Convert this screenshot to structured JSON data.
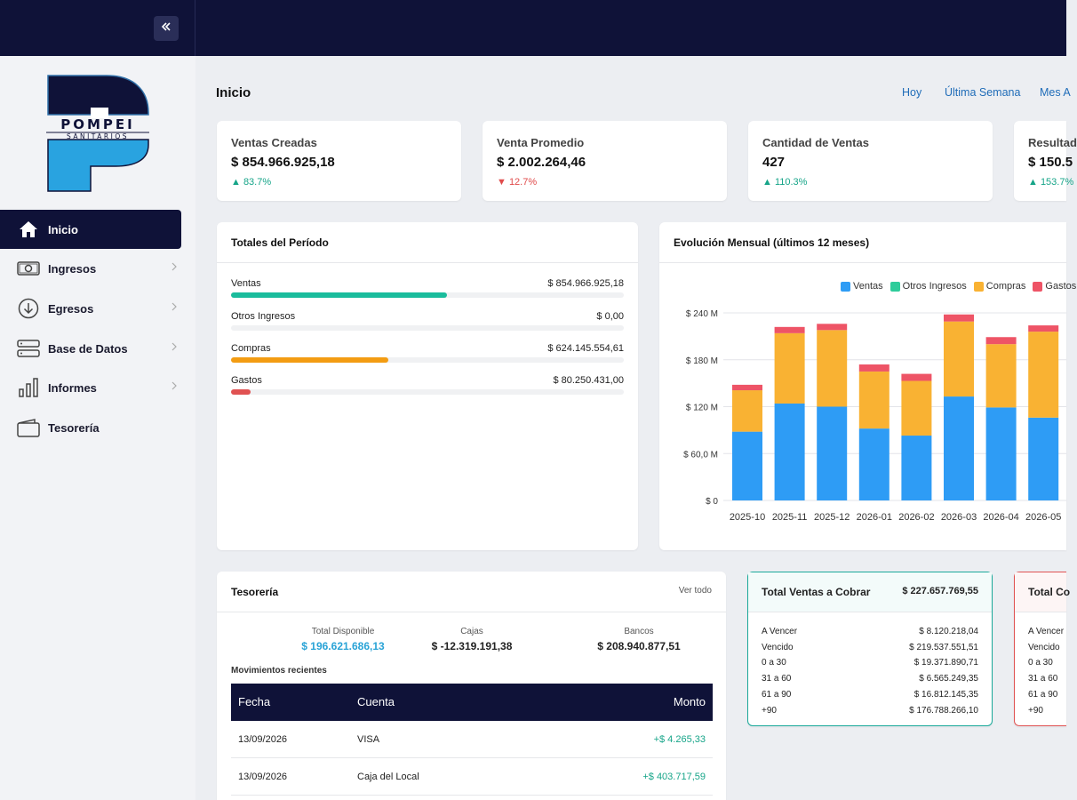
{
  "page": {
    "title": "Inicio",
    "period_links": [
      "Hoy",
      "Última Semana",
      "Mes A"
    ]
  },
  "brand": {
    "logo_name": "POMPEI",
    "logo_sub": "SANITARIOS"
  },
  "sidebar": {
    "items": [
      {
        "label": "Inicio",
        "icon": "home-icon",
        "active": true
      },
      {
        "label": "Ingresos",
        "icon": "cash-icon"
      },
      {
        "label": "Egresos",
        "icon": "download-circle-icon"
      },
      {
        "label": "Base de Datos",
        "icon": "server-icon"
      },
      {
        "label": "Informes",
        "icon": "bar-chart-icon"
      },
      {
        "label": "Tesorería",
        "icon": "wallet-icon"
      }
    ]
  },
  "kpis": [
    {
      "label": "Ventas Creadas",
      "value": "$ 854.966.925,18",
      "change": "▲ 83.7%",
      "direction": "up"
    },
    {
      "label": "Venta Promedio",
      "value": "$ 2.002.264,46",
      "change": "▼ 12.7%",
      "direction": "down"
    },
    {
      "label": "Cantidad de Ventas",
      "value": "427",
      "change": "▲ 110.3%",
      "direction": "up"
    },
    {
      "label": "Resultad",
      "value": "$ 150.5",
      "change": "▲ 153.7%",
      "direction": "up"
    }
  ],
  "totales": {
    "title": "Totales del Período",
    "rows": [
      {
        "label": "Ventas",
        "value": "$ 854.966.925,18",
        "fraction": 0.55,
        "color": "#1abc9c"
      },
      {
        "label": "Otros Ingresos",
        "value": "$ 0,00",
        "fraction": 0,
        "color": "#1abc9c"
      },
      {
        "label": "Compras",
        "value": "$ 624.145.554,61",
        "fraction": 0.4,
        "color": "#f39c12"
      },
      {
        "label": "Gastos",
        "value": "$ 80.250.431,00",
        "fraction": 0.05,
        "color": "#e05252"
      }
    ]
  },
  "evolucion": {
    "title": "Evolución Mensual (últimos 12 meses)"
  },
  "chart_data": {
    "type": "bar",
    "stacked": true,
    "categories": [
      "2025-10",
      "2025-11",
      "2025-12",
      "2026-01",
      "2026-02",
      "2026-03",
      "2026-04",
      "2026-05"
    ],
    "series": [
      {
        "name": "Ventas",
        "color": "#2e9cf5",
        "values": [
          88,
          124,
          120,
          92,
          83,
          133,
          119,
          106
        ]
      },
      {
        "name": "Otros Ingresos",
        "color": "#2ecc9a",
        "values": [
          0,
          0,
          0,
          0,
          0,
          0,
          0,
          0
        ]
      },
      {
        "name": "Compras",
        "color": "#f9b233",
        "values": [
          53,
          90,
          98,
          73,
          70,
          96,
          81,
          110
        ]
      },
      {
        "name": "Gastos",
        "color": "#ee5466",
        "values": [
          7,
          8,
          8,
          9,
          9,
          9,
          9,
          8
        ]
      }
    ],
    "ylim": [
      0,
      240
    ],
    "yticks": [
      "$ 0",
      "$ 60,0 M",
      "$ 120 M",
      "$ 180 M",
      "$ 240 M"
    ],
    "legend": "top-right",
    "grid": true
  },
  "tesoreria": {
    "title": "Tesorería",
    "link": "Ver todo",
    "summary": [
      {
        "label": "Total Disponible",
        "value": "$ 196.621.686,13",
        "color": "#29a3d6"
      },
      {
        "label": "Cajas",
        "value": "$ -12.319.191,38",
        "color": "#222222"
      },
      {
        "label": "Bancos",
        "value": "$ 208.940.877,51",
        "color": "#222222"
      }
    ],
    "recent_title": "Movimientos recientes",
    "columns": [
      "Fecha",
      "Cuenta",
      "Monto"
    ],
    "rows": [
      {
        "fecha": "13/09/2026",
        "cuenta": "VISA",
        "monto": "+$ 4.265,33"
      },
      {
        "fecha": "13/09/2026",
        "cuenta": "Caja del Local",
        "monto": "+$ 403.717,59"
      }
    ]
  },
  "cobrar": {
    "title": "Total Ventas a Cobrar",
    "total": "$ 227.657.769,55",
    "rows": [
      {
        "label": "A Vencer",
        "value": "$ 8.120.218,04"
      },
      {
        "label": "Vencido",
        "value": "$ 219.537.551,51"
      },
      {
        "label": "0 a 30",
        "value": "$ 19.371.890,71"
      },
      {
        "label": "31 a 60",
        "value": "$ 6.565.249,35"
      },
      {
        "label": "61 a 90",
        "value": "$ 16.812.145,35"
      },
      {
        "label": "+90",
        "value": "$ 176.788.266,10"
      }
    ]
  },
  "pagar": {
    "title": "Total Co",
    "rows": [
      "A Vencer",
      "Vencido",
      "0 a 30",
      "31 a 60",
      "61 a 90",
      "+90"
    ]
  }
}
